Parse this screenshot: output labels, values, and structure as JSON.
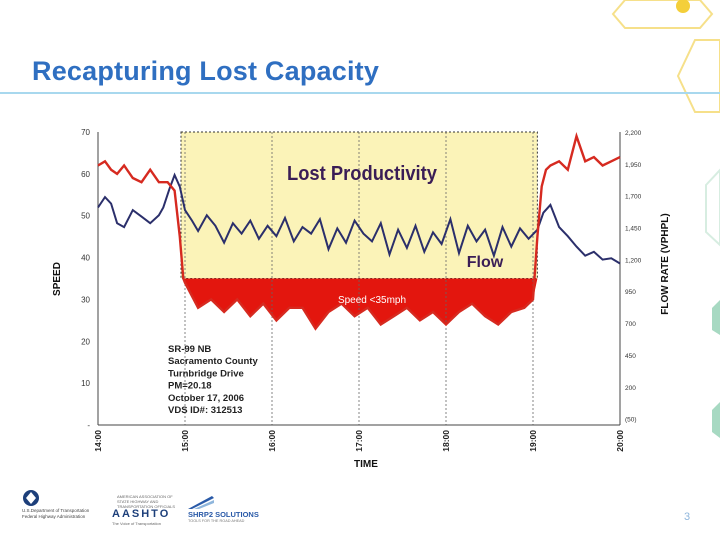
{
  "slide": {
    "title": "Recapturing Lost Capacity",
    "page_number": "3"
  },
  "colors": {
    "title": "#2f6fc1",
    "speed_line": "#d62a20",
    "flow_line": "#2b2f6b",
    "lost_productivity_fill": "#fbf3b8",
    "speed_area_fill": "#e3160e"
  },
  "chart_data": {
    "type": "line",
    "xlabel": "TIME",
    "ylabel": "SPEED",
    "y2label": "FLOW RATE (VPHPL)",
    "x_ticks": [
      "14:00",
      "15:00",
      "16:00",
      "17:00",
      "18:00",
      "19:00",
      "20:00"
    ],
    "y_ticks": [
      "70",
      "60",
      "50",
      "40",
      "30",
      "20",
      "10",
      "-"
    ],
    "y2_ticks": [
      "2,200",
      "1,950",
      "1,700",
      "1,450",
      "1,200",
      "950",
      "700",
      "450",
      "200",
      "(50)"
    ],
    "ylim": [
      0,
      70
    ],
    "y2lim": [
      -50,
      2200
    ],
    "xlim_hours": [
      14,
      20
    ],
    "annotations": {
      "lost_productivity": "Lost Productivity",
      "flow": "Flow",
      "speed_below": "Speed <35mph"
    },
    "site_info": [
      "SR-99 NB",
      "Sacramento County",
      "Turnbridge Drive",
      "PM=20.18",
      "October 17, 2006",
      "VDS ID#: 312513"
    ],
    "threshold_speed": 35,
    "series": [
      {
        "name": "Speed",
        "unit": "mph",
        "x": [
          14.0,
          14.08,
          14.15,
          14.22,
          14.3,
          14.4,
          14.5,
          14.6,
          14.7,
          14.8,
          14.88,
          14.94,
          14.98,
          15.0,
          15.15,
          15.3,
          15.45,
          15.6,
          15.75,
          15.9,
          16.05,
          16.2,
          16.35,
          16.5,
          16.65,
          16.8,
          16.95,
          17.1,
          17.25,
          17.4,
          17.55,
          17.7,
          17.85,
          18.0,
          18.15,
          18.3,
          18.45,
          18.6,
          18.75,
          18.9,
          19.0,
          19.05,
          19.1,
          19.15,
          19.2,
          19.3,
          19.4,
          19.5,
          19.6,
          19.7,
          19.8,
          19.9,
          20.0
        ],
        "values": [
          62,
          63,
          61,
          60,
          62,
          59,
          58,
          61,
          58,
          58,
          56,
          45,
          35,
          34,
          28,
          30,
          27,
          30,
          26,
          29,
          25,
          28,
          28,
          23,
          27,
          29,
          26,
          28,
          24,
          26,
          28,
          25,
          27,
          24,
          27,
          29,
          26,
          24,
          27,
          28,
          30,
          45,
          57,
          61,
          62,
          63,
          61,
          69,
          63,
          64,
          62,
          63,
          64
        ]
      },
      {
        "name": "Flow",
        "unit": "vphpl",
        "x": [
          14.0,
          14.08,
          14.15,
          14.22,
          14.3,
          14.4,
          14.5,
          14.6,
          14.7,
          14.75,
          14.82,
          14.88,
          14.94,
          15.0,
          15.08,
          15.15,
          15.25,
          15.35,
          15.45,
          15.55,
          15.65,
          15.75,
          15.85,
          15.95,
          16.05,
          16.15,
          16.25,
          16.35,
          16.45,
          16.55,
          16.65,
          16.75,
          16.85,
          16.95,
          17.05,
          17.15,
          17.25,
          17.35,
          17.45,
          17.55,
          17.65,
          17.75,
          17.85,
          17.95,
          18.05,
          18.15,
          18.25,
          18.35,
          18.45,
          18.55,
          18.65,
          18.75,
          18.85,
          18.95,
          19.05,
          19.12,
          19.2,
          19.3,
          19.4,
          19.5,
          19.6,
          19.7,
          19.8,
          19.9,
          20.0
        ],
        "values": [
          1620,
          1700,
          1650,
          1500,
          1470,
          1600,
          1550,
          1500,
          1560,
          1620,
          1760,
          1870,
          1780,
          1600,
          1520,
          1440,
          1560,
          1480,
          1350,
          1500,
          1420,
          1520,
          1380,
          1480,
          1400,
          1540,
          1360,
          1470,
          1420,
          1530,
          1300,
          1460,
          1350,
          1520,
          1420,
          1360,
          1500,
          1260,
          1450,
          1310,
          1480,
          1280,
          1430,
          1340,
          1530,
          1270,
          1480,
          1360,
          1450,
          1250,
          1470,
          1320,
          1460,
          1380,
          1450,
          1580,
          1640,
          1470,
          1400,
          1320,
          1250,
          1280,
          1220,
          1230,
          1190
        ]
      }
    ]
  }
}
